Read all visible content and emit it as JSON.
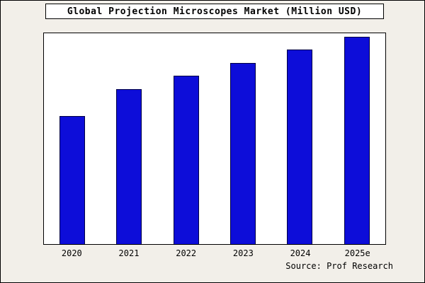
{
  "chart_data": {
    "type": "bar",
    "title": "Global Projection Microscopes Market (Million USD)",
    "categories": [
      "2020",
      "2021",
      "2022",
      "2023",
      "2024",
      "2025e"
    ],
    "values": [
      182,
      220,
      240,
      258,
      277,
      295
    ],
    "ylim": [
      0,
      300
    ],
    "xlabel": "",
    "ylabel": "",
    "grid": false,
    "legend": false,
    "bar_color": "#0d0dd9",
    "bar_border_color": "#000044",
    "plot_background": "#ffffff",
    "page_background": "#f2efe9",
    "source": "Source: Prof Research"
  }
}
